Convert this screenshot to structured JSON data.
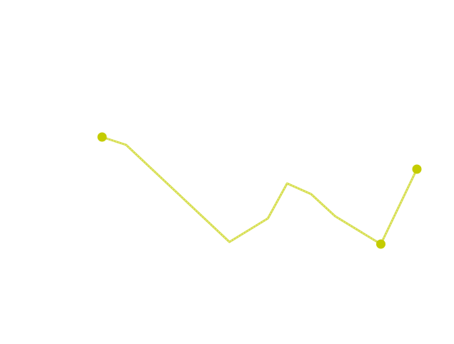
{
  "chart_data": {
    "type": "line",
    "title": "",
    "xlabel": "",
    "ylabel": "",
    "axes_visible": false,
    "grid": false,
    "legend": "none",
    "x": [
      0,
      1,
      5.3,
      6.9,
      7.7,
      8.7,
      9.7,
      11.6,
      13.1
    ],
    "series": [
      {
        "values": [
          290,
          279,
          143,
          176,
          225,
          210,
          179,
          140,
          245
        ],
        "color": "#c4cc00",
        "line_color": "#d4dc4a",
        "markers_at": [
          "first",
          "min",
          "last"
        ]
      }
    ],
    "xlim": [
      0,
      13.1
    ],
    "ylim": [
      0,
      482
    ]
  }
}
